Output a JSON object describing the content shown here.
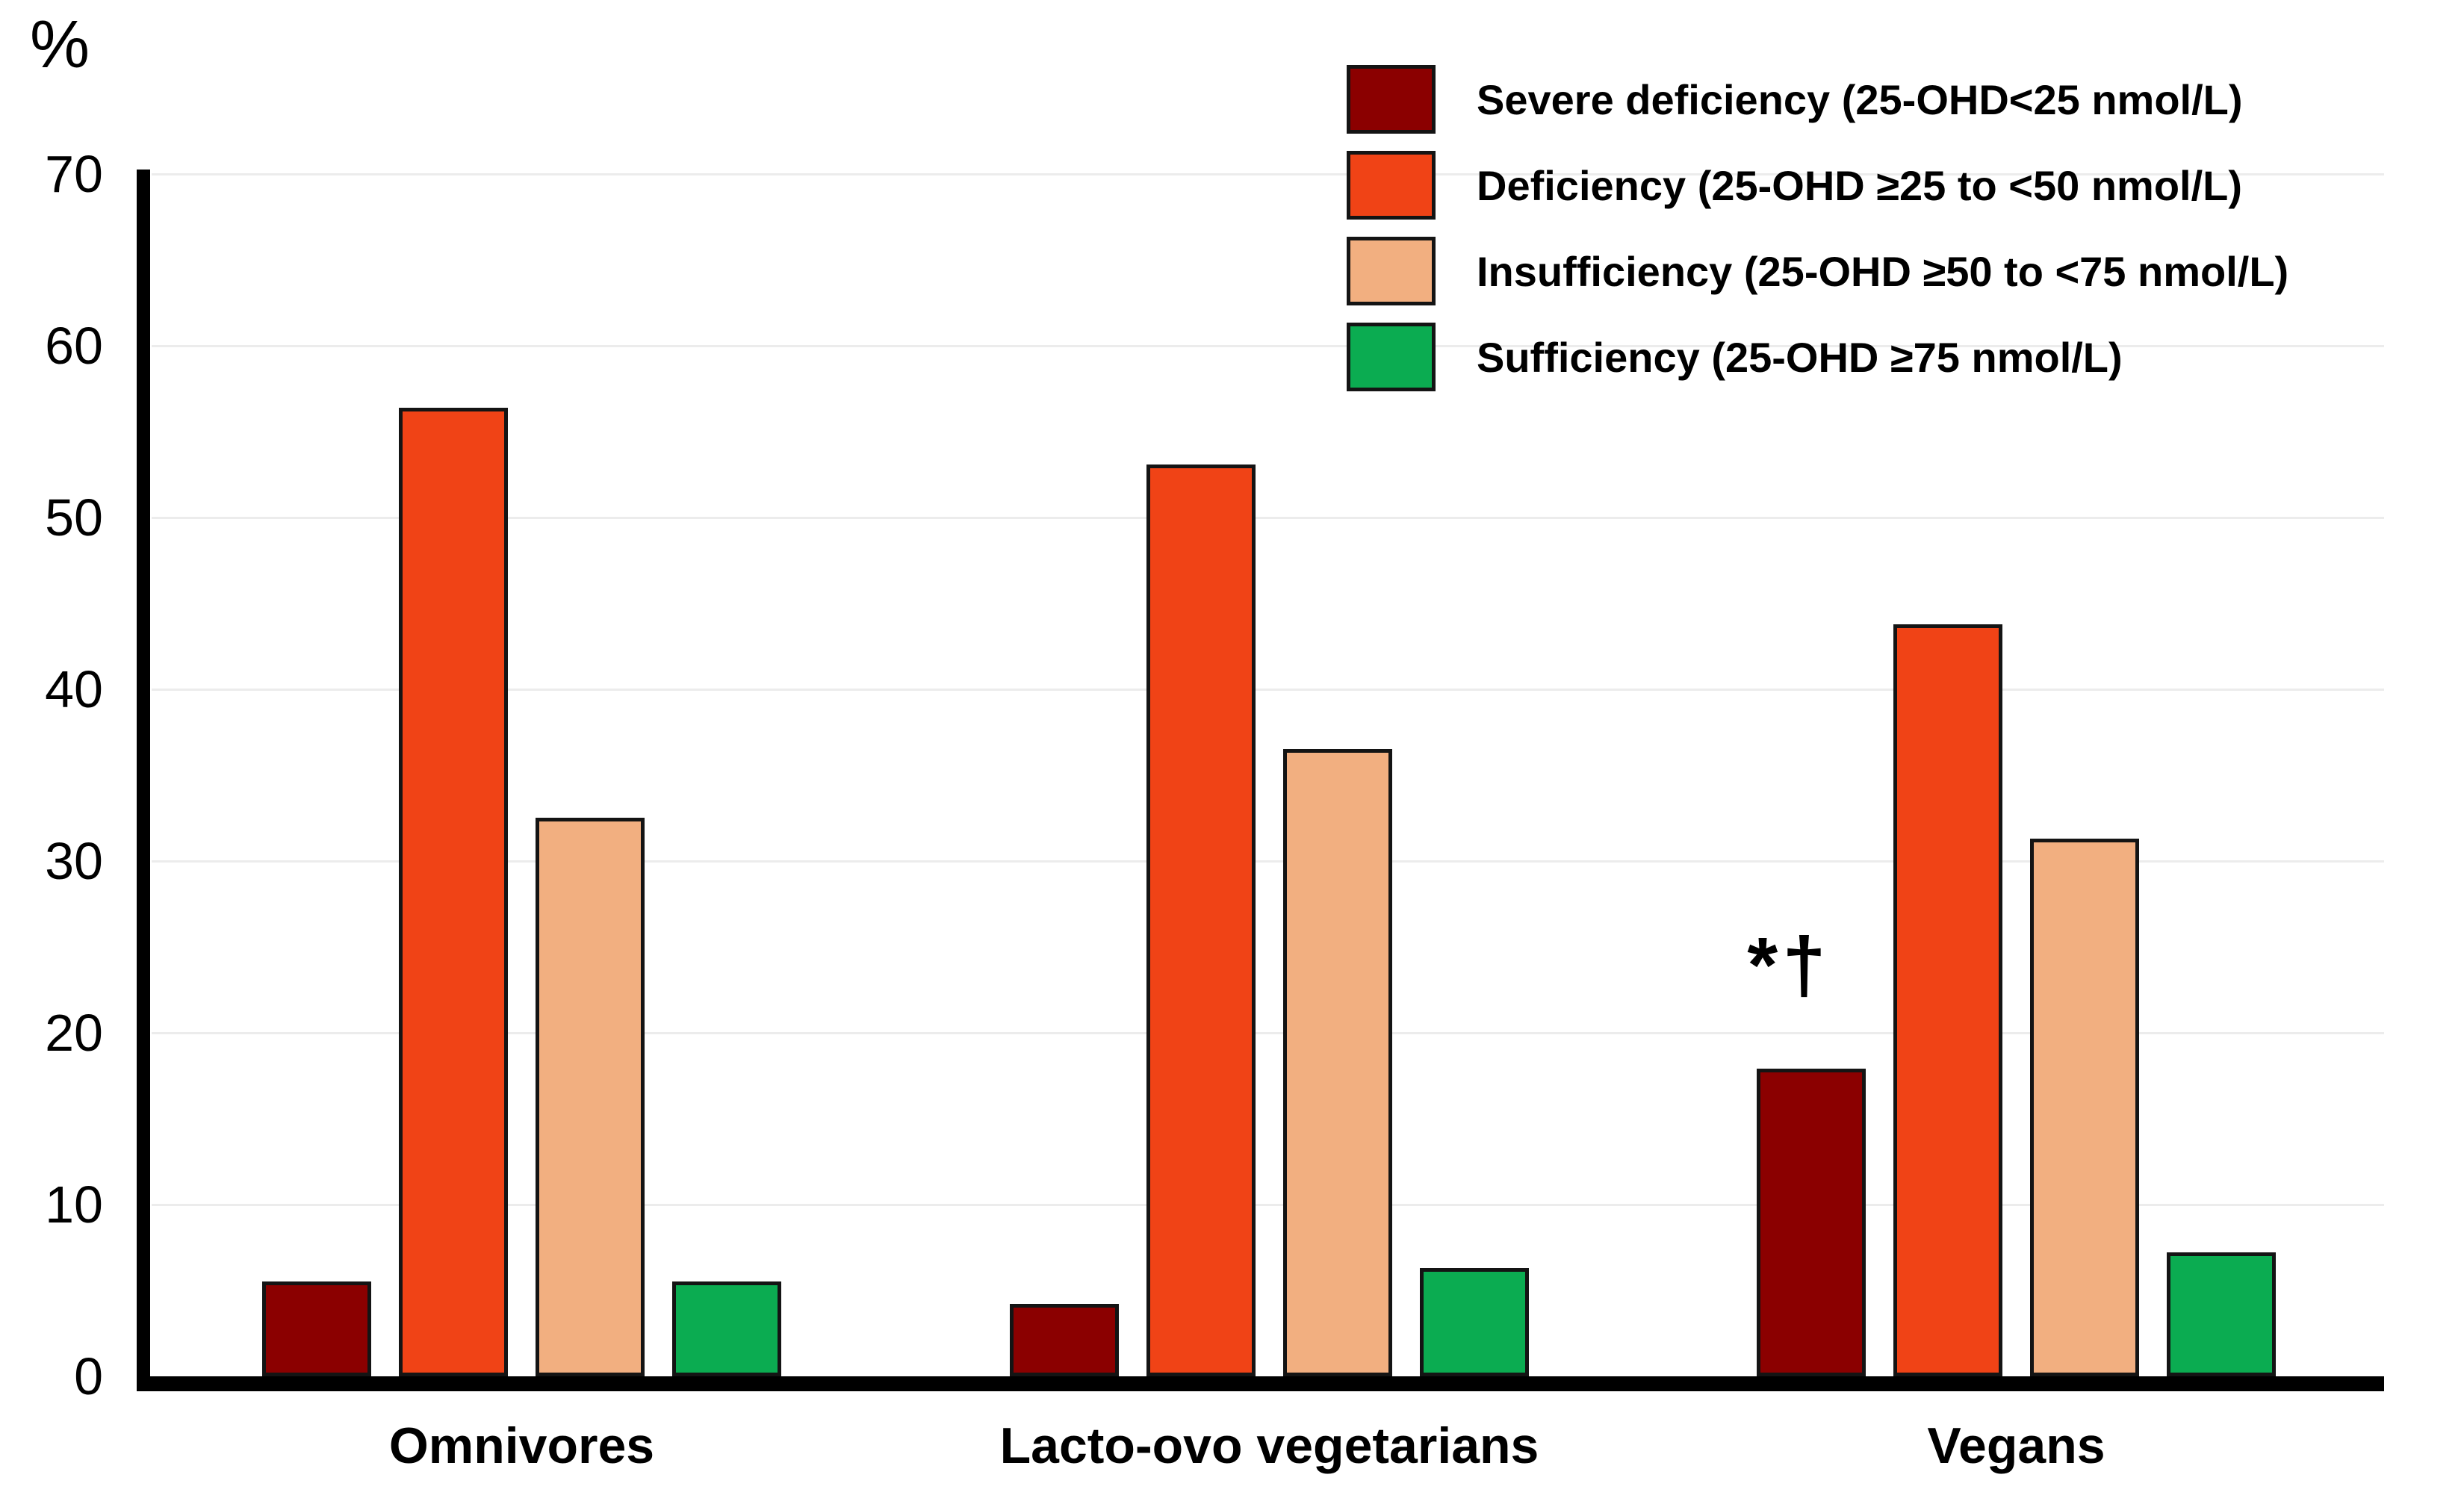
{
  "chart_data": {
    "type": "bar",
    "title": "",
    "ylabel": "%",
    "xlabel": "",
    "ylim": [
      0,
      70
    ],
    "y_ticks": [
      0,
      10,
      20,
      30,
      40,
      50,
      60,
      70
    ],
    "grid": true,
    "grid_color": "#ececec",
    "axis_color": "#000000",
    "legend_position": "top-right",
    "categories": [
      "Omnivores",
      "Lacto-ovo vegetarians",
      "Vegans"
    ],
    "series": [
      {
        "name": "Severe deficiency (25-OHD<25 nmol/L)",
        "color": "#8B0000",
        "values": [
          5.5,
          4.2,
          17.9
        ]
      },
      {
        "name": "Deficiency (25-OHD ≥25 to <50 nmol/L)",
        "color": "#F04316",
        "values": [
          56.4,
          53.1,
          43.8
        ]
      },
      {
        "name": "Insufficiency (25-OHD ≥50 to <75 nmol/L)",
        "color": "#F2AF80",
        "values": [
          32.5,
          36.5,
          31.3
        ]
      },
      {
        "name": "Sufficiency (25-OHD ≥75 nmol/L)",
        "color": "#0BAC51",
        "values": [
          5.5,
          6.3,
          7.2
        ]
      }
    ],
    "annotations": [
      {
        "text": "*†",
        "category": "Vegans",
        "category_index": 2,
        "series": "Severe deficiency (25-OHD<25 nmol/L)",
        "series_index": 0
      }
    ]
  }
}
